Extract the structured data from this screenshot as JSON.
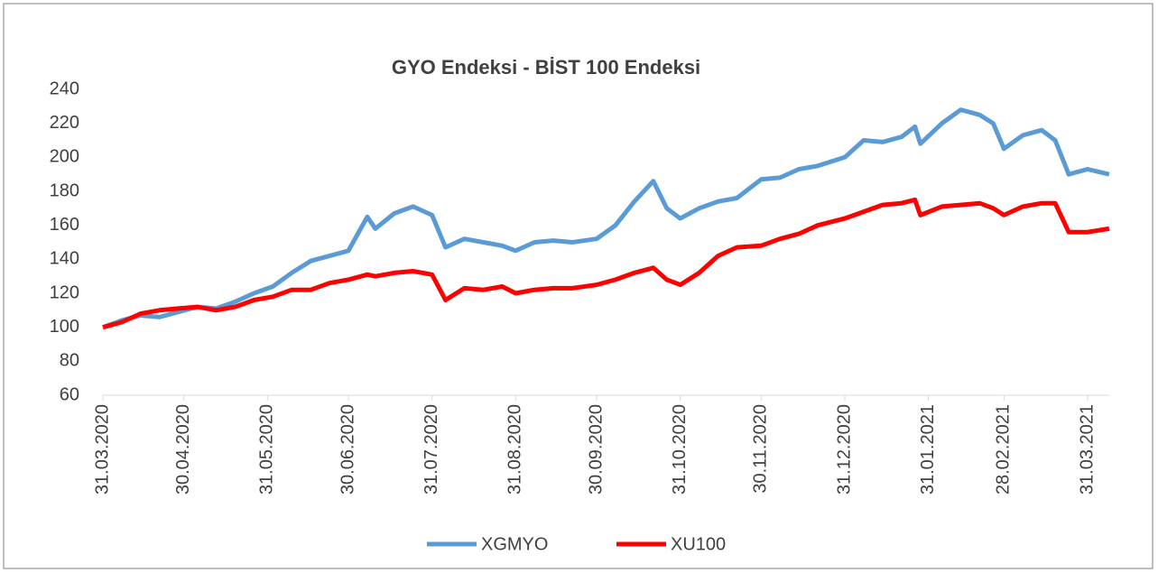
{
  "chart_data": {
    "type": "line",
    "title": "GYO Endeksi - BİST 100 Endeksi",
    "x": [
      "31.03.2020",
      "07.04.2020",
      "14.04.2020",
      "21.04.2020",
      "28.04.2020",
      "05.05.2020",
      "12.05.2020",
      "19.05.2020",
      "26.05.2020",
      "02.06.2020",
      "09.06.2020",
      "16.06.2020",
      "23.06.2020",
      "30.06.2020",
      "07.07.2020",
      "10.07.2020",
      "17.07.2020",
      "24.07.2020",
      "31.07.2020",
      "05.08.2020",
      "12.08.2020",
      "19.08.2020",
      "26.08.2020",
      "31.08.2020",
      "07.09.2020",
      "14.09.2020",
      "21.09.2020",
      "30.09.2020",
      "07.10.2020",
      "14.10.2020",
      "21.10.2020",
      "26.10.2020",
      "31.10.2020",
      "07.11.2020",
      "14.11.2020",
      "21.11.2020",
      "30.11.2020",
      "07.12.2020",
      "14.12.2020",
      "21.12.2020",
      "31.12.2020",
      "07.01.2021",
      "14.01.2021",
      "21.01.2021",
      "26.01.2021",
      "28.01.2021",
      "05.02.2021",
      "12.02.2021",
      "19.02.2021",
      "24.02.2021",
      "28.02.2021",
      "07.03.2021",
      "14.03.2021",
      "19.03.2021",
      "24.03.2021",
      "31.03.2021",
      "08.04.2021"
    ],
    "series": [
      {
        "name": "XGMYO",
        "color": "#5b9bd5",
        "values": [
          100,
          104,
          107,
          106,
          109,
          112,
          111,
          115,
          120,
          124,
          132,
          139,
          142,
          145,
          165,
          158,
          167,
          171,
          166,
          147,
          152,
          150,
          148,
          145,
          150,
          151,
          150,
          152,
          160,
          174,
          186,
          170,
          164,
          170,
          174,
          176,
          187,
          188,
          193,
          195,
          200,
          210,
          209,
          212,
          218,
          208,
          220,
          228,
          225,
          220,
          205,
          213,
          216,
          210,
          190,
          193,
          190
        ]
      },
      {
        "name": "XU100",
        "color": "#ff0000",
        "values": [
          100,
          103,
          108,
          110,
          111,
          112,
          110,
          112,
          116,
          118,
          122,
          122,
          126,
          128,
          131,
          130,
          132,
          133,
          131,
          116,
          123,
          122,
          124,
          120,
          122,
          123,
          123,
          125,
          128,
          132,
          135,
          128,
          125,
          132,
          142,
          147,
          148,
          152,
          155,
          160,
          164,
          168,
          172,
          173,
          175,
          166,
          171,
          172,
          173,
          170,
          166,
          171,
          173,
          173,
          156,
          156,
          158
        ]
      }
    ],
    "xticks": [
      "31.03.2020",
      "30.04.2020",
      "31.05.2020",
      "30.06.2020",
      "31.07.2020",
      "31.08.2020",
      "30.09.2020",
      "31.10.2020",
      "30.11.2020",
      "31.12.2020",
      "31.01.2021",
      "28.02.2021",
      "31.03.2021"
    ],
    "ylim": [
      60,
      240
    ],
    "yticks": [
      60,
      80,
      100,
      120,
      140,
      160,
      180,
      200,
      220,
      240
    ]
  }
}
